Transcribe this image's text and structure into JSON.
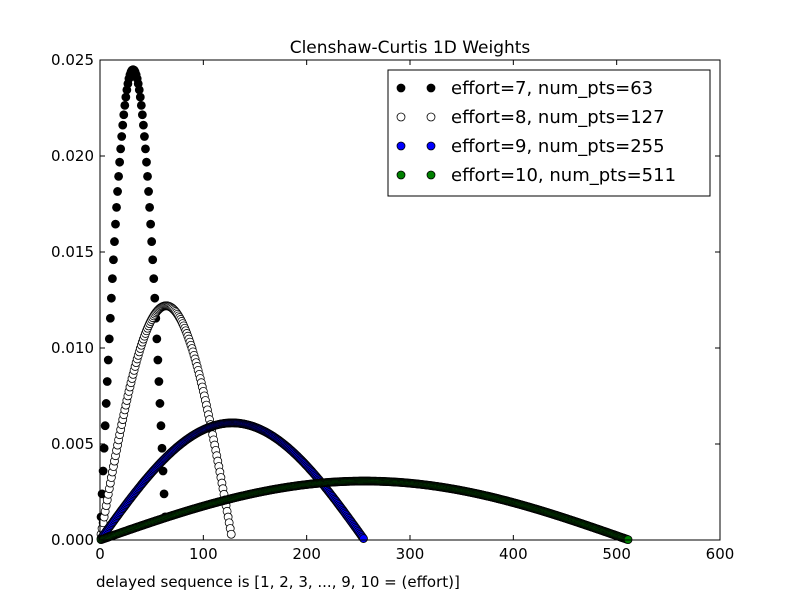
{
  "chart_data": {
    "type": "scatter",
    "title": "Clenshaw-Curtis 1D Weights",
    "xlabel": "delayed sequence is [1, 2, 3, ..., 9, 10 = (effort)]",
    "ylabel": "",
    "xlim": [
      0,
      600
    ],
    "ylim": [
      0,
      0.025
    ],
    "x_ticks": [
      "0",
      "100",
      "200",
      "300",
      "400",
      "500",
      "600"
    ],
    "y_ticks": [
      "0.000",
      "0.005",
      "0.010",
      "0.015",
      "0.020",
      "0.025"
    ],
    "grid": false,
    "legend_position": "top-right",
    "series": [
      {
        "name": "effort=7, num_pts=63",
        "num_points": 63,
        "peak_y": 0.0245,
        "face_color": "#000000",
        "edge_color": "#000000"
      },
      {
        "name": "effort=8, num_pts=127",
        "num_points": 127,
        "peak_y": 0.0122,
        "face_color": "#ffffff",
        "edge_color": "#000000"
      },
      {
        "name": "effort=9, num_pts=255",
        "num_points": 255,
        "peak_y": 0.0061,
        "face_color": "#0000ff",
        "edge_color": "#000000"
      },
      {
        "name": "effort=10, num_pts=511",
        "num_points": 511,
        "peak_y": 0.00307,
        "face_color": "#008000",
        "edge_color": "#000000"
      }
    ]
  }
}
